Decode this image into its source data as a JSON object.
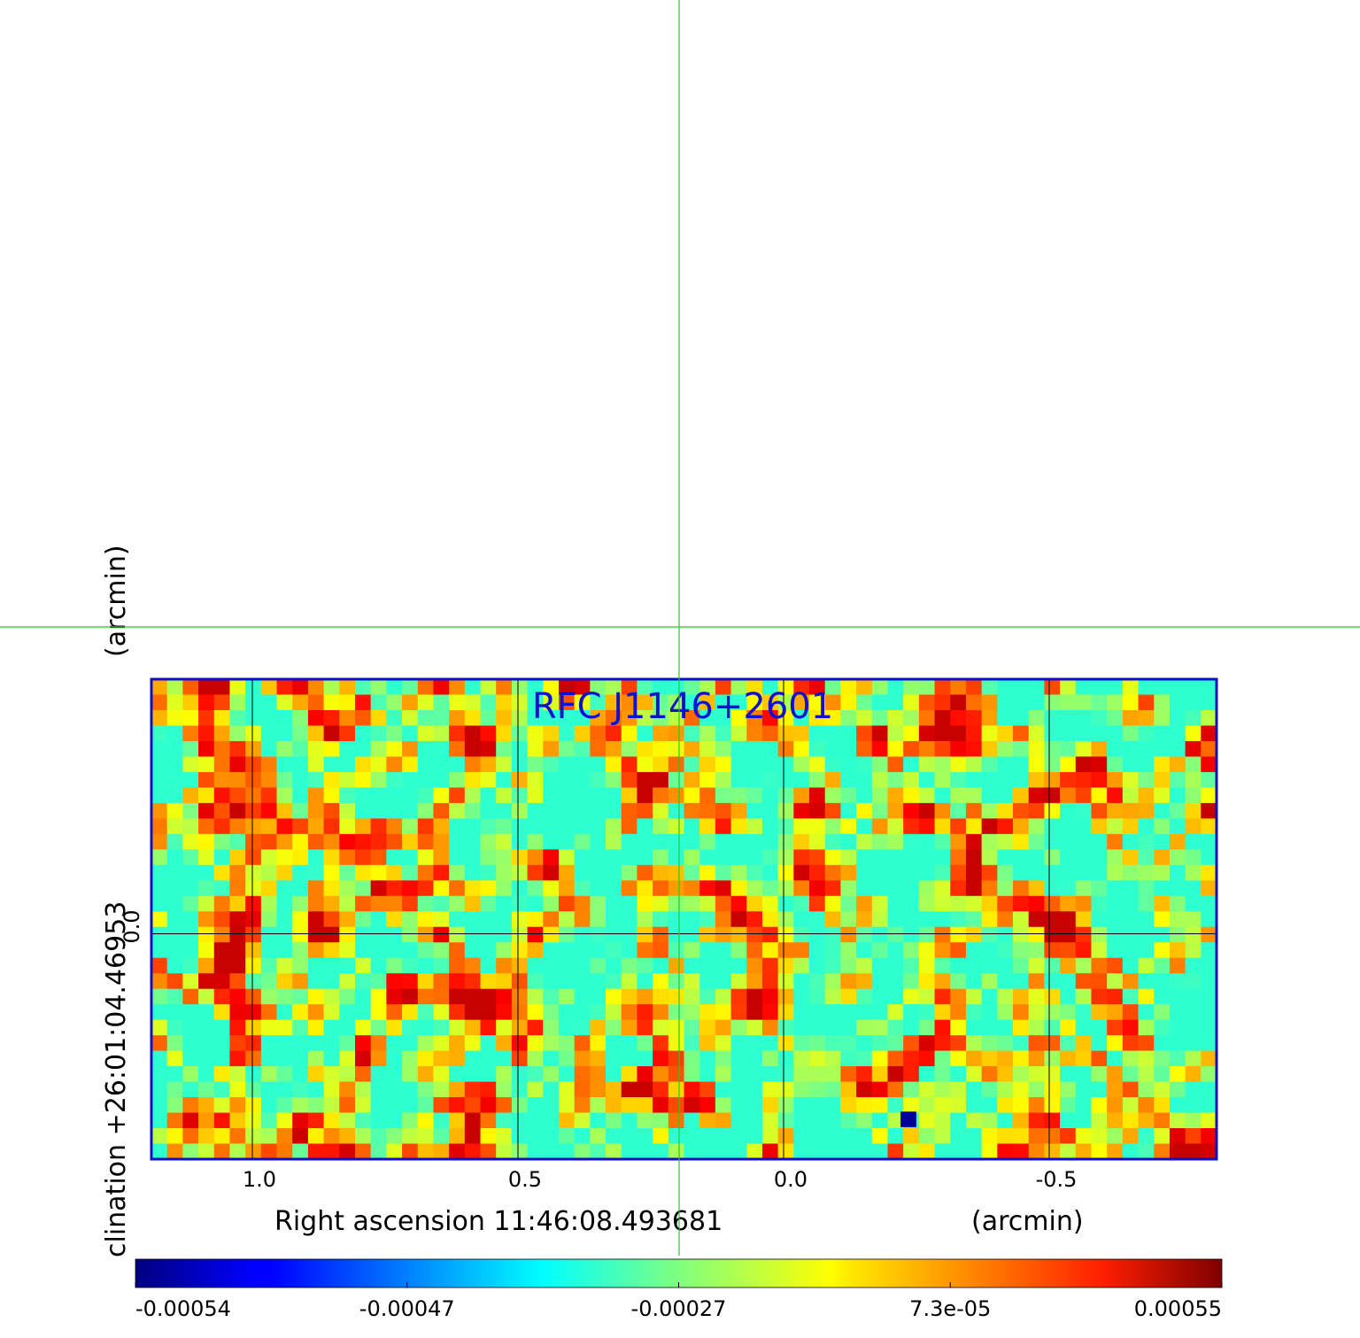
{
  "chart_data": {
    "type": "heatmap",
    "title": "RFC J1146+2601",
    "xlabel": "Right ascension  11:46:08.493681",
    "xunit": "(arcmin)",
    "ylabel": "clination  +26:01:04.46953",
    "yunit": "(arcmin)",
    "x_ticks": [
      {
        "value": 1.0,
        "label": "1.0"
      },
      {
        "value": 0.5,
        "label": "0.5"
      },
      {
        "value": 0.0,
        "label": "0.0"
      },
      {
        "value": -0.5,
        "label": "-0.5"
      }
    ],
    "y_ticks": [
      {
        "value": 0.0,
        "label": "0.0"
      }
    ],
    "xlim": [
      1.19,
      -0.815
    ],
    "ylim": [
      -0.425,
      0.48
    ],
    "grid": true,
    "colormap": "jet",
    "colorbar": {
      "min": -0.00054,
      "max": 0.00055,
      "tick_labels": [
        "-0.00054",
        "-0.00047",
        "-0.00027",
        "7.3e-05",
        "0.00055"
      ],
      "tick_fractions": [
        0.0,
        0.25,
        0.5,
        0.75,
        1.0
      ]
    },
    "crosshair": {
      "x": 0.195,
      "y": 0.73
    },
    "pixel_grid": {
      "cols": 68,
      "rows": 31
    },
    "notable_pixels": [
      {
        "x": -0.235,
        "y": -0.35,
        "value": -0.00054
      }
    ]
  },
  "colors": {
    "frame": "#1010c0",
    "title": "#1010d0",
    "crosshair": "#22cc22",
    "grid": "#000000"
  }
}
